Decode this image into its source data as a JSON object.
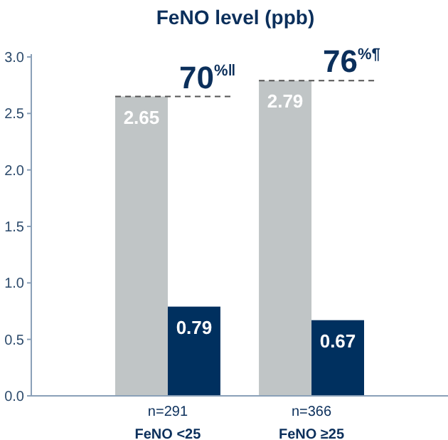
{
  "chart_data": {
    "type": "bar",
    "title": "FeNO level (ppb)",
    "categories": [
      "n=291\nFeNO <25",
      "n=366\nFeNO ≥25"
    ],
    "series": [
      {
        "color": "#c0c5c6",
        "values": [
          2.65,
          2.79
        ]
      },
      {
        "color": "#00305f",
        "values": [
          0.79,
          0.67
        ]
      }
    ],
    "ylim": [
      0,
      3
    ],
    "yticks": [
      {
        "value": 0,
        "label": "0.0"
      },
      {
        "value": 0.5,
        "label": "0.5"
      },
      {
        "value": 1,
        "label": "1.0"
      },
      {
        "value": 1.5,
        "label": "1.5"
      },
      {
        "value": 2,
        "label": "2.0"
      },
      {
        "value": 2.5,
        "label": "2.5"
      },
      {
        "value": 3,
        "label": "3.0"
      }
    ],
    "data_labels": true,
    "annotations": [
      {
        "text": "70$^{%‖}$",
        "x": "n=291\nFeNO <25",
        "y": 2.65
      },
      {
        "text": "76$^{%¶}$",
        "x": "n=366\nFeNO ≥25",
        "y": 2.79
      }
    ]
  }
}
